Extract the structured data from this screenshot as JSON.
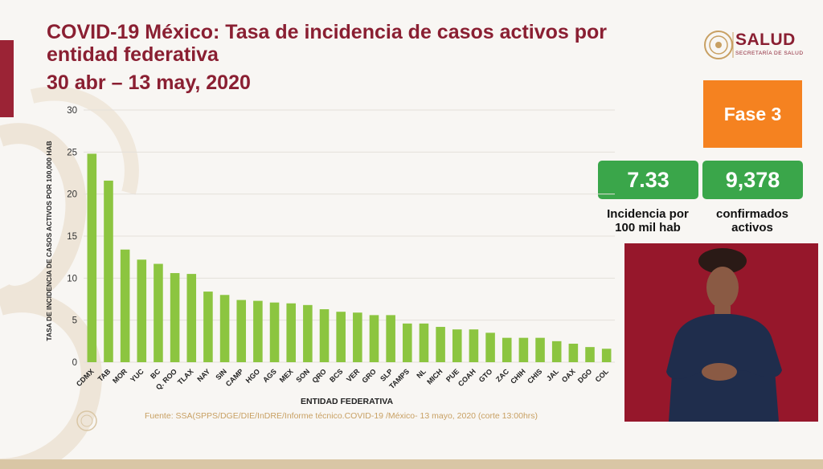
{
  "header": {
    "title": "COVID-19 México: Tasa de incidencia de casos activos por entidad federativa",
    "subtitle": "30 abr – 13 may, 2020"
  },
  "logo": {
    "text": "SALUD",
    "subtext": "SECRETARÍA DE SALUD"
  },
  "phase_badge": "Fase 3",
  "stats": [
    {
      "value": "7.33",
      "label": "Incidencia por 100 mil hab"
    },
    {
      "value": "9,378",
      "label": "confirmados activos"
    }
  ],
  "footer": {
    "source": "Fuente: SSA(SPPS/DGE/DIE/InDRE/Informe técnico.COVID-19 /México- 13 mayo, 2020 (corte 13:00hrs)"
  },
  "colors": {
    "bar": "#8cc540",
    "title": "#8a1f32",
    "phase": "#f58220",
    "stat": "#3aa64a",
    "interpreter_bg": "#96172b"
  },
  "chart_data": {
    "type": "bar",
    "title": "",
    "xlabel": "ENTIDAD FEDERATIVA",
    "ylabel": "TASA DE INCIDENCIA DE CASOS ACTIVOS POR 100,000 HAB",
    "ylim": [
      0,
      30
    ],
    "yticks": [
      0,
      5,
      10,
      15,
      20,
      25,
      30
    ],
    "grid": true,
    "categories": [
      "CDMX",
      "TAB",
      "MOR",
      "YUC",
      "BC",
      "Q. ROO",
      "TLAX",
      "NAY",
      "SIN",
      "CAMP",
      "HGO",
      "AGS",
      "MEX",
      "SON",
      "QRO",
      "BCS",
      "VER",
      "GRO",
      "SLP",
      "TAMPS",
      "NL",
      "MICH",
      "PUE",
      "COAH",
      "GTO",
      "ZAC",
      "CHIH",
      "CHIS",
      "JAL",
      "OAX",
      "DGO",
      "COL"
    ],
    "values": [
      24.8,
      21.6,
      13.4,
      12.2,
      11.7,
      10.6,
      10.5,
      8.4,
      8.0,
      7.4,
      7.3,
      7.1,
      7.0,
      6.8,
      6.3,
      6.0,
      5.9,
      5.6,
      5.6,
      4.6,
      4.6,
      4.2,
      3.9,
      3.9,
      3.5,
      2.9,
      2.9,
      2.9,
      2.5,
      2.2,
      1.8,
      1.6
    ]
  }
}
